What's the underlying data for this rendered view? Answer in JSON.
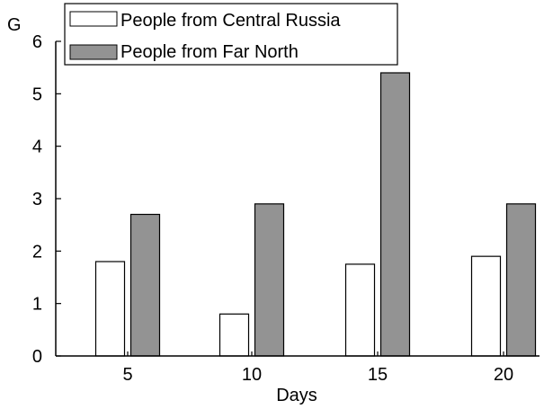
{
  "chart_data": {
    "type": "bar",
    "categories": [
      "5",
      "10",
      "15",
      "20"
    ],
    "series": [
      {
        "name": "People from Central Russia",
        "values": [
          1.8,
          0.8,
          1.75,
          1.9
        ],
        "color": "#ffffff"
      },
      {
        "name": "People from Far North",
        "values": [
          2.7,
          2.9,
          5.4,
          2.9
        ],
        "color": "#939393"
      }
    ],
    "xlabel": "Days",
    "ylabel": "G",
    "ylim": [
      0,
      6
    ],
    "yticks": [
      "0",
      "1",
      "2",
      "3",
      "4",
      "5",
      "6"
    ],
    "grid": false,
    "legend_position": "top-left"
  }
}
